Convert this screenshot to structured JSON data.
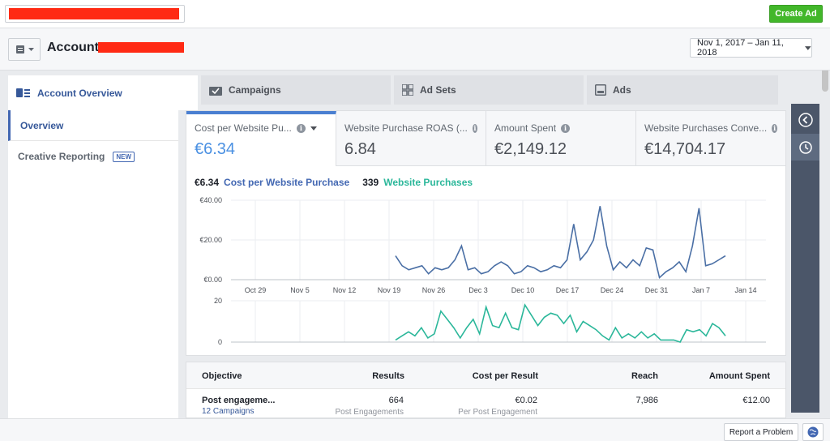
{
  "topbar": {
    "create_ad_label": "Create Ad"
  },
  "account": {
    "title_prefix": "Account:",
    "date_range": "Nov 1, 2017 – Jan 11, 2018"
  },
  "tabs": [
    {
      "label": "Account Overview",
      "icon": "overview-icon"
    },
    {
      "label": "Campaigns",
      "icon": "folder-icon"
    },
    {
      "label": "Ad Sets",
      "icon": "grid-icon"
    },
    {
      "label": "Ads",
      "icon": "ad-icon"
    }
  ],
  "leftnav": {
    "overview": "Overview",
    "creative": "Creative Reporting",
    "badge": "NEW"
  },
  "metrics": [
    {
      "label": "Cost per Website Pu...",
      "value": "€6.34"
    },
    {
      "label": "Website Purchase ROAS (...",
      "value": "6.84"
    },
    {
      "label": "Amount Spent",
      "value": "€2,149.12"
    },
    {
      "label": "Website Purchases Conve...",
      "value": "€14,704.17"
    }
  ],
  "legend": {
    "v1": "€6.34",
    "l1": "Cost per Website Purchase",
    "v2": "339",
    "l2": "Website Purchases"
  },
  "colors": {
    "series1": "#4a6fa5",
    "series2": "#2bb79a",
    "accent": "#4267b2",
    "create": "#42b72a"
  },
  "chart_data": [
    {
      "type": "line",
      "title": "",
      "xlabel": "",
      "ylabel": "",
      "y_ticks": [
        "€40.00",
        "€20.00",
        "€0.00"
      ],
      "ylim": [
        0,
        40
      ],
      "x_ticks": [
        "Oct 29",
        "Nov 5",
        "Nov 12",
        "Nov 19",
        "Nov 26",
        "Dec 3",
        "Dec 10",
        "Dec 17",
        "Dec 24",
        "Dec 31",
        "Jan 7",
        "Jan 14"
      ],
      "series": [
        {
          "name": "Cost per Website Purchase",
          "values": [
            12,
            7,
            5,
            6,
            7,
            3,
            6,
            5,
            6,
            10,
            17,
            5,
            6,
            3,
            4,
            7,
            9,
            7,
            3,
            4,
            7,
            6,
            4,
            5,
            7,
            6,
            10,
            28,
            10,
            14,
            20,
            37,
            17,
            5,
            9,
            6,
            10,
            7,
            16,
            15,
            1,
            4,
            6,
            9,
            4,
            17,
            36,
            7,
            8,
            10,
            12
          ]
        }
      ]
    },
    {
      "type": "line",
      "title": "",
      "y_ticks": [
        "20",
        "0"
      ],
      "ylim": [
        0,
        20
      ],
      "series": [
        {
          "name": "Website Purchases",
          "values": [
            1,
            3,
            5,
            3,
            7,
            2,
            4,
            15,
            11,
            7,
            2,
            7,
            11,
            4,
            17,
            8,
            7,
            14,
            7,
            6,
            18,
            13,
            8,
            12,
            14,
            13,
            9,
            13,
            5,
            10,
            8,
            6,
            3,
            1,
            7,
            2,
            4,
            2,
            5,
            2,
            4,
            1,
            1,
            1,
            0,
            6,
            5,
            6,
            3,
            9,
            7,
            3
          ]
        }
      ]
    }
  ],
  "table": {
    "headers": [
      "Objective",
      "Results",
      "Cost per Result",
      "Reach",
      "Amount Spent"
    ],
    "row": {
      "objective": "Post engageme...",
      "campaigns": "12 Campaigns",
      "results": "664",
      "results_sub": "Post Engagements",
      "cpr": "€0.02",
      "cpr_sub": "Per Post Engagement",
      "reach": "7,986",
      "spent": "€12.00"
    }
  },
  "footer": {
    "report_label": "Report a Problem"
  }
}
